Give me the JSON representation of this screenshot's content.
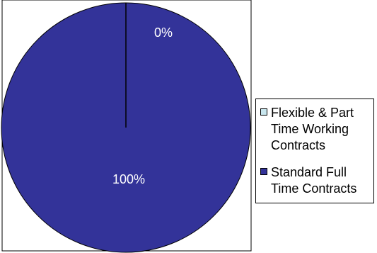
{
  "chart_data": {
    "type": "pie",
    "title": "",
    "categories": [
      "Flexible & Part Time Working Contracts",
      "Standard Full Time Contracts"
    ],
    "values": [
      0,
      100
    ],
    "data_labels": [
      "0%",
      "100%"
    ],
    "colors": [
      "#C8E6EE",
      "#333399"
    ],
    "legend_position": "right"
  },
  "legend": {
    "items": [
      {
        "label": "Flexible & Part Time Working Contracts",
        "color": "#C8E6EE"
      },
      {
        "label": "Standard Full Time Contracts",
        "color": "#333399"
      }
    ]
  }
}
